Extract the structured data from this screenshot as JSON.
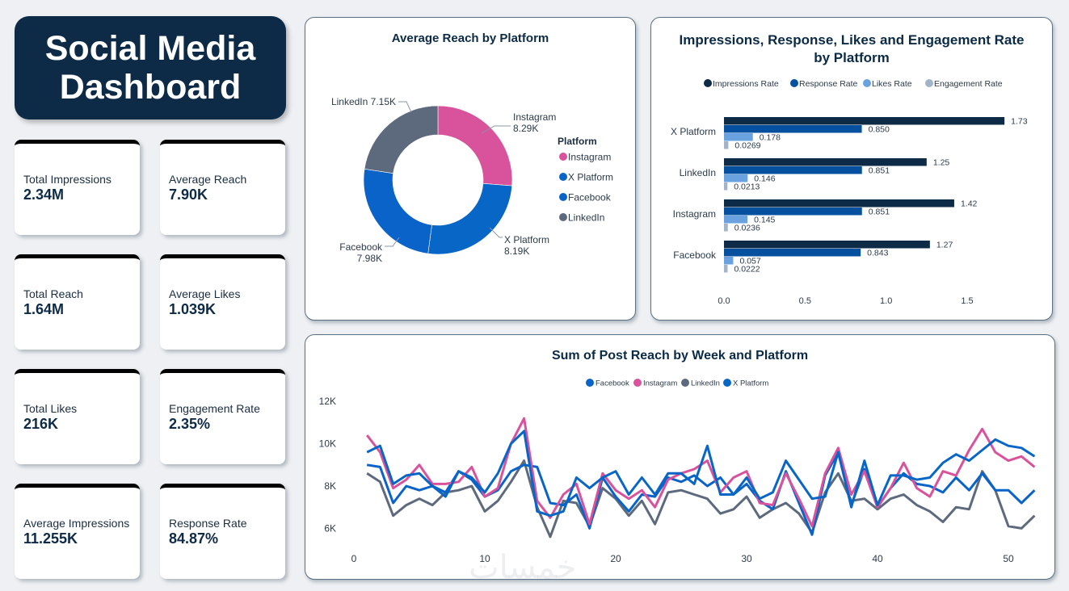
{
  "header": {
    "title_line1": "Social Media",
    "title_line2": "Dashboard"
  },
  "kpis": [
    {
      "label": "Total Impressions",
      "value": "2.34M"
    },
    {
      "label": "Average Reach",
      "value": "7.90K"
    },
    {
      "label": "Total Reach",
      "value": "1.64M"
    },
    {
      "label": "Average Likes",
      "value": "1.039K"
    },
    {
      "label": "Total Likes",
      "value": "216K"
    },
    {
      "label": "Engagement Rate",
      "value": "2.35%"
    },
    {
      "label": "Average Impressions",
      "value": "11.255K"
    },
    {
      "label": "Response Rate",
      "value": "84.87%"
    }
  ],
  "colors": {
    "instagram": "#d9529c",
    "x_platform": "#0866c6",
    "facebook": "#0a63c9",
    "linkedin": "#5d6a7e",
    "impressions_rate": "#0d2a46",
    "response_rate": "#0650a0",
    "likes_rate": "#6aa2e0",
    "engagement_rate": "#a3b4c8"
  },
  "watermark": "خمسات",
  "chart_data": [
    {
      "type": "pie",
      "title": "Average Reach by Platform",
      "legend_title": "Platform",
      "legend_position": "right",
      "donut": true,
      "slices": [
        {
          "label": "Instagram",
          "value": 8.29,
          "display": "8.29K",
          "color_key": "instagram"
        },
        {
          "label": "X Platform",
          "value": 8.19,
          "display": "8.19K",
          "color_key": "x_platform"
        },
        {
          "label": "Facebook",
          "value": 7.98,
          "display": "7.98K",
          "color_key": "facebook"
        },
        {
          "label": "LinkedIn",
          "value": 7.15,
          "display": "7.15K",
          "color_key": "linkedin"
        }
      ],
      "legend": [
        "Instagram",
        "X Platform",
        "Facebook",
        "LinkedIn"
      ]
    },
    {
      "type": "bar",
      "orientation": "horizontal",
      "title_line1": "Impressions, Response, Likes and Engagement Rate",
      "title_line2": "by Platform",
      "legend_position": "top",
      "categories": [
        "X Platform",
        "LinkedIn",
        "Instagram",
        "Facebook"
      ],
      "series": [
        {
          "name": "Impressions Rate",
          "color_key": "impressions_rate",
          "values": [
            1.73,
            1.25,
            1.42,
            1.27
          ],
          "labels": [
            "1.73",
            "1.25",
            "1.42",
            "1.27"
          ]
        },
        {
          "name": "Response Rate",
          "color_key": "response_rate",
          "values": [
            0.85,
            0.851,
            0.851,
            0.843
          ],
          "labels": [
            "0.850",
            "0.851",
            "0.851",
            "0.843"
          ]
        },
        {
          "name": "Likes Rate",
          "color_key": "likes_rate",
          "values": [
            0.178,
            0.146,
            0.145,
            0.057
          ],
          "labels": [
            "0.178",
            "0.146",
            "0.145",
            "0.057"
          ]
        },
        {
          "name": "Engagement Rate",
          "color_key": "engagement_rate",
          "values": [
            0.0269,
            0.0213,
            0.0236,
            0.0222
          ],
          "labels": [
            "0.0269",
            "0.0213",
            "0.0236",
            "0.0222"
          ]
        }
      ],
      "xlim": [
        0,
        1.9
      ],
      "xticks": [
        0.0,
        0.5,
        1.0,
        1.5
      ],
      "xtick_labels": [
        "0.0",
        "0.5",
        "1.0",
        "1.5"
      ]
    },
    {
      "type": "line",
      "title": "Sum of Post Reach by Week and Platform",
      "legend_position": "top",
      "xlabel": "",
      "ylabel": "",
      "xlim": [
        0,
        53
      ],
      "ylim": [
        5,
        12.4
      ],
      "xticks": [
        0,
        10,
        20,
        30,
        40,
        50
      ],
      "yticks": [
        6,
        8,
        10,
        12
      ],
      "ytick_labels": [
        "6K",
        "8K",
        "10K",
        "12K"
      ],
      "y_unit": "K",
      "x": [
        1,
        2,
        3,
        4,
        5,
        6,
        7,
        8,
        9,
        10,
        11,
        12,
        13,
        14,
        15,
        16,
        17,
        18,
        19,
        20,
        21,
        22,
        23,
        24,
        25,
        26,
        27,
        28,
        29,
        30,
        31,
        32,
        33,
        34,
        35,
        36,
        37,
        38,
        39,
        40,
        41,
        42,
        43,
        44,
        45,
        46,
        47,
        48,
        49,
        50,
        51,
        52
      ],
      "series": [
        {
          "name": "Facebook",
          "color_key": "facebook",
          "values": [
            9.0,
            8.9,
            7.2,
            8.0,
            7.8,
            8.0,
            7.7,
            8.7,
            8.3,
            7.5,
            7.8,
            8.7,
            9.0,
            8.9,
            7.2,
            7.1,
            7.6,
            6.0,
            8.4,
            7.5,
            6.8,
            7.6,
            7.5,
            8.4,
            8.2,
            8.5,
            8.0,
            8.4,
            7.6,
            8.1,
            7.3,
            6.9,
            8.7,
            7.2,
            5.7,
            8.5,
            9.6,
            7.1,
            8.8,
            7.0,
            7.9,
            8.6,
            8.1,
            8.0,
            7.7,
            8.4,
            7.8,
            8.6,
            7.8,
            7.8,
            7.2,
            7.8
          ]
        },
        {
          "name": "Instagram",
          "color_key": "instagram",
          "values": [
            10.4,
            9.6,
            7.9,
            8.3,
            9.0,
            8.1,
            8.1,
            8.2,
            8.9,
            7.5,
            7.9,
            10.0,
            11.2,
            7.3,
            6.5,
            7.6,
            8.1,
            6.2,
            8.6,
            7.8,
            7.4,
            7.8,
            7.0,
            8.3,
            8.6,
            8.8,
            9.2,
            7.7,
            8.4,
            8.7,
            7.2,
            7.1,
            8.6,
            7.4,
            6.1,
            8.6,
            9.8,
            7.6,
            8.7,
            7.0,
            7.9,
            9.1,
            7.9,
            7.5,
            8.7,
            8.5,
            9.7,
            10.7,
            9.6,
            9.2,
            9.4,
            8.9
          ]
        },
        {
          "name": "LinkedIn",
          "color_key": "linkedin",
          "values": [
            8.6,
            8.2,
            6.6,
            7.1,
            7.4,
            7.1,
            7.7,
            7.8,
            8.0,
            6.8,
            7.3,
            8.2,
            9.2,
            7.0,
            5.6,
            7.3,
            7.2,
            6.1,
            7.9,
            7.4,
            6.6,
            7.3,
            6.2,
            7.7,
            7.8,
            7.6,
            7.4,
            6.7,
            6.9,
            7.5,
            6.5,
            6.9,
            7.2,
            6.7,
            5.8,
            7.7,
            8.6,
            7.3,
            7.4,
            6.9,
            7.4,
            7.6,
            7.1,
            6.8,
            6.3,
            7.0,
            6.9,
            8.7,
            7.8,
            6.1,
            6.0,
            6.6
          ]
        },
        {
          "name": "X Platform",
          "color_key": "x_platform",
          "values": [
            9.6,
            9.9,
            8.1,
            8.5,
            8.6,
            8.0,
            7.5,
            8.7,
            8.4,
            7.7,
            8.6,
            10.0,
            10.6,
            6.8,
            6.6,
            6.8,
            8.4,
            7.9,
            8.4,
            8.7,
            7.6,
            8.4,
            7.6,
            8.6,
            8.6,
            8.1,
            9.9,
            7.6,
            7.6,
            8.4,
            7.4,
            7.7,
            9.2,
            8.3,
            7.4,
            7.5,
            9.6,
            7.0,
            9.2,
            7.1,
            8.5,
            8.5,
            8.3,
            8.4,
            9.1,
            9.5,
            9.2,
            9.7,
            10.2,
            9.9,
            9.8,
            9.4
          ]
        }
      ]
    }
  ]
}
